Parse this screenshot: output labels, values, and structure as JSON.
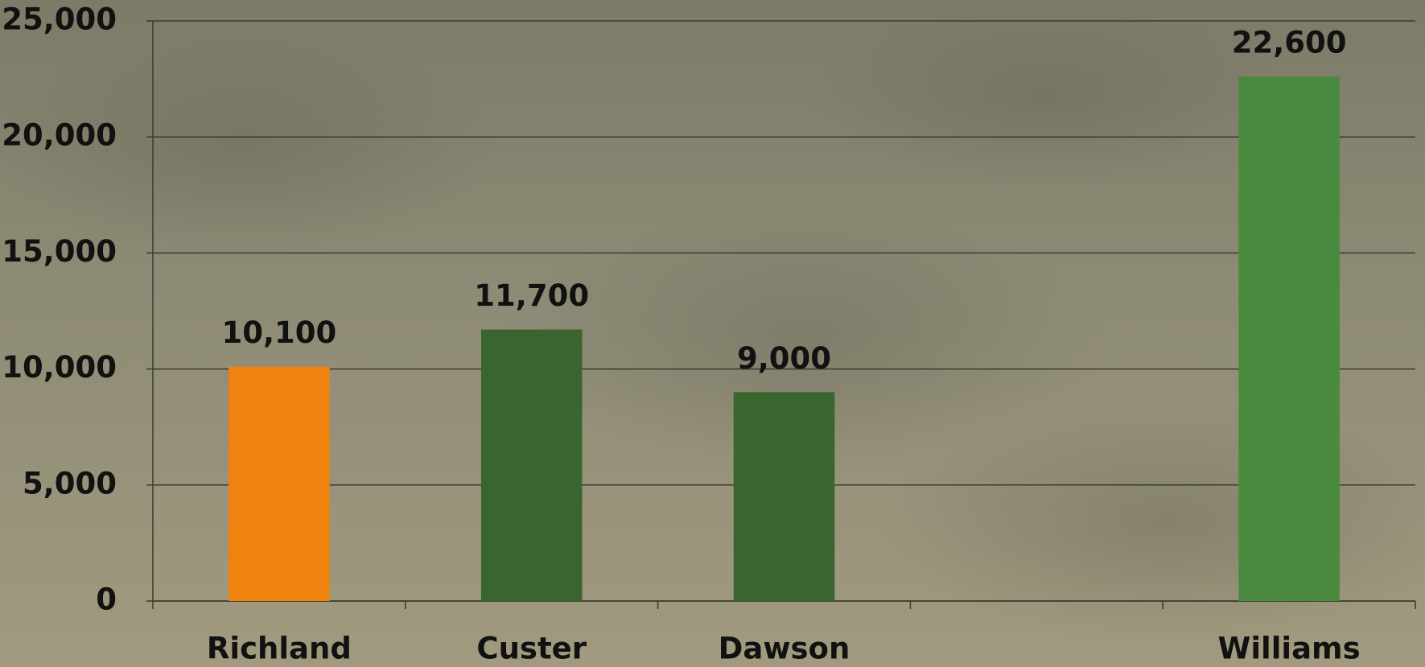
{
  "chart_data": {
    "type": "bar",
    "categories": [
      "Richland",
      "Custer",
      "Dawson",
      null,
      "Williams"
    ],
    "values": [
      10100,
      11700,
      9000,
      null,
      22600
    ],
    "value_labels": [
      "10,100",
      "11,700",
      "9,000",
      null,
      "22,600"
    ],
    "colors": [
      "#f0820f",
      "#3a652e",
      "#3a652e",
      null,
      "#4a8a3e"
    ],
    "ylim": [
      0,
      25000
    ],
    "yticks": [
      0,
      {
        "value": 5000,
        "label": "5,000"
      },
      {
        "value": 10000,
        "label": "10,000"
      },
      {
        "value": 15000,
        "label": "15,000"
      },
      {
        "value": 20000,
        "label": "20,000"
      },
      {
        "value": 25000,
        "label": "25,000"
      }
    ],
    "grid": true
  }
}
